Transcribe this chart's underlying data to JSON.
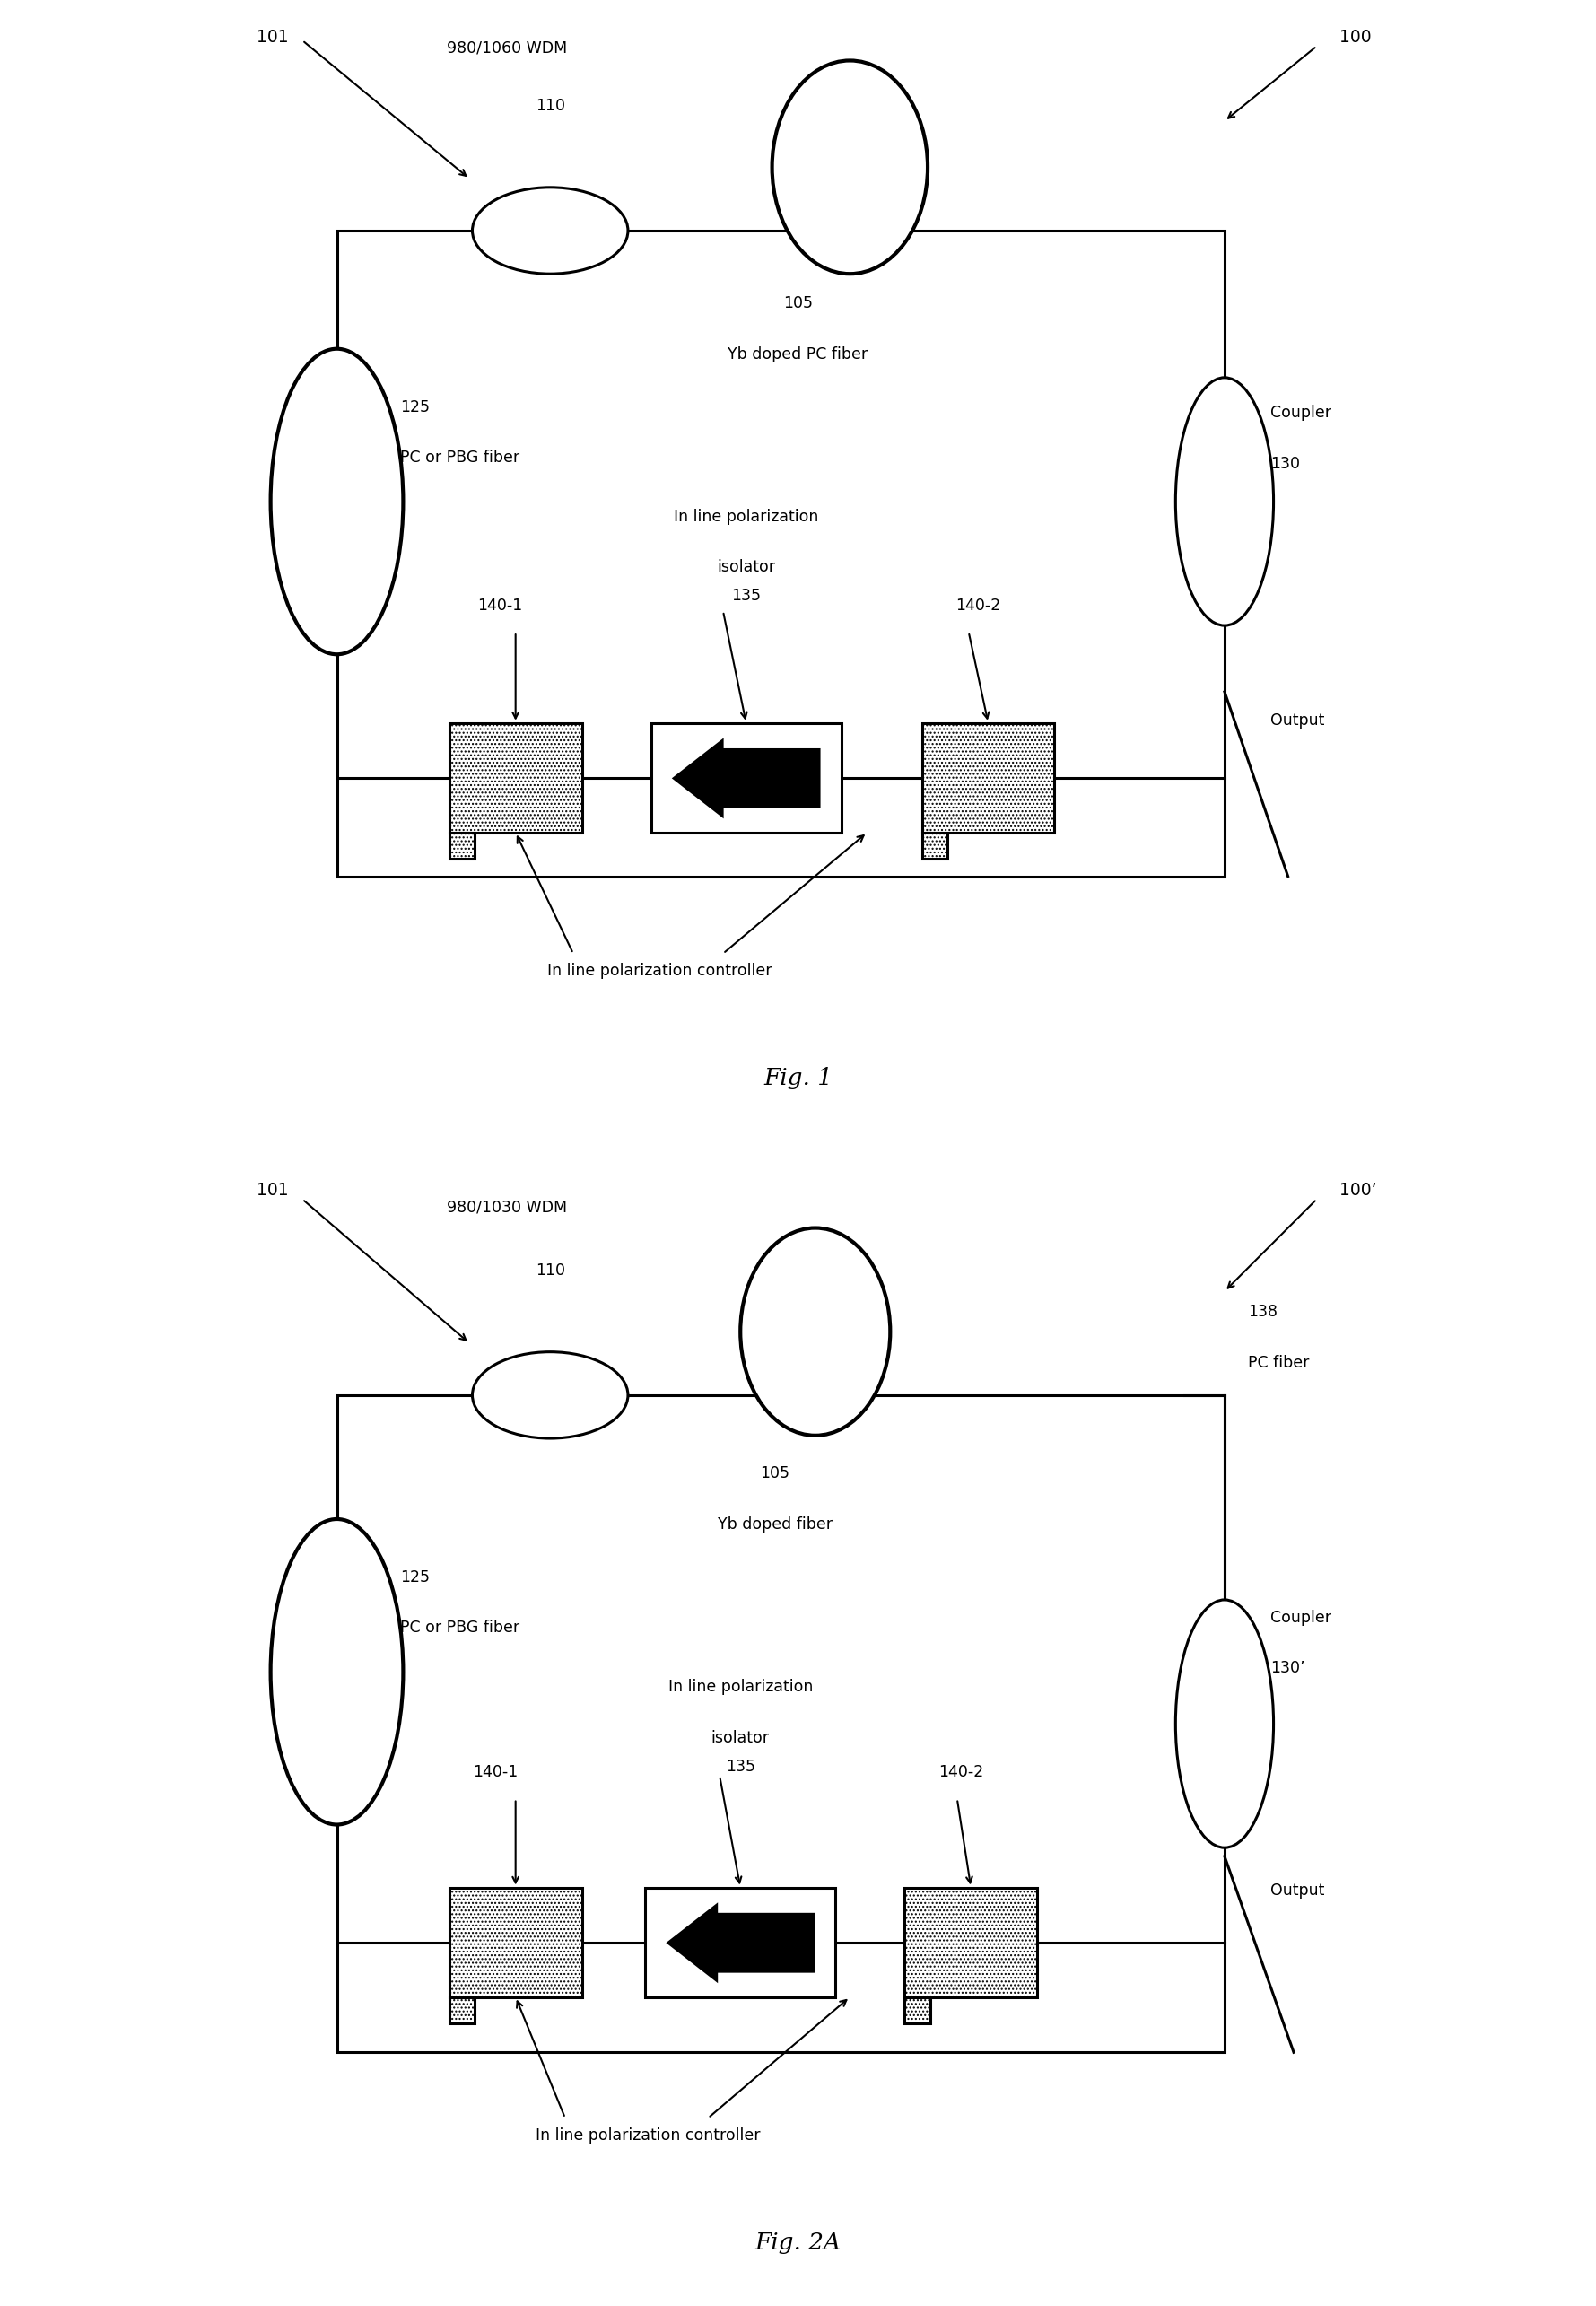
{
  "fig1": {
    "title": "Fig. 1",
    "wdm_text": "980/1060 WDM",
    "wdm_num": "110",
    "pump_num": "101",
    "fiber_num": "105",
    "fiber_text": "Yb doped PC fiber",
    "left_fiber_num": "125",
    "left_fiber_text": "PC or PBG fiber",
    "coupler_text": "Coupler",
    "coupler_num": "130",
    "sys_num": "100",
    "isolator_text1": "In line polarization",
    "isolator_text2": "isolator",
    "isolator_num": "135",
    "pc1_num": "140-1",
    "pc2_num": "140-2",
    "output_text": "Output",
    "controller_text": "In line polarization controller"
  },
  "fig2a": {
    "title": "Fig. 2A",
    "wdm_text": "980/1030 WDM",
    "wdm_num": "110",
    "pump_num": "101",
    "fiber_num": "105",
    "fiber_text": "Yb doped fiber",
    "left_fiber_num": "125",
    "left_fiber_text": "PC or PBG fiber",
    "coupler_text": "Coupler",
    "coupler_num": "130’",
    "pc_fiber_num": "138",
    "pc_fiber_text": "PC fiber",
    "sys_num": "100’",
    "isolator_text1": "In line polarization",
    "isolator_text2": "isolator",
    "isolator_num": "135",
    "pc1_num": "140-1",
    "pc2_num": "140-2",
    "output_text": "Output",
    "controller_text": "In line polarization controller"
  }
}
